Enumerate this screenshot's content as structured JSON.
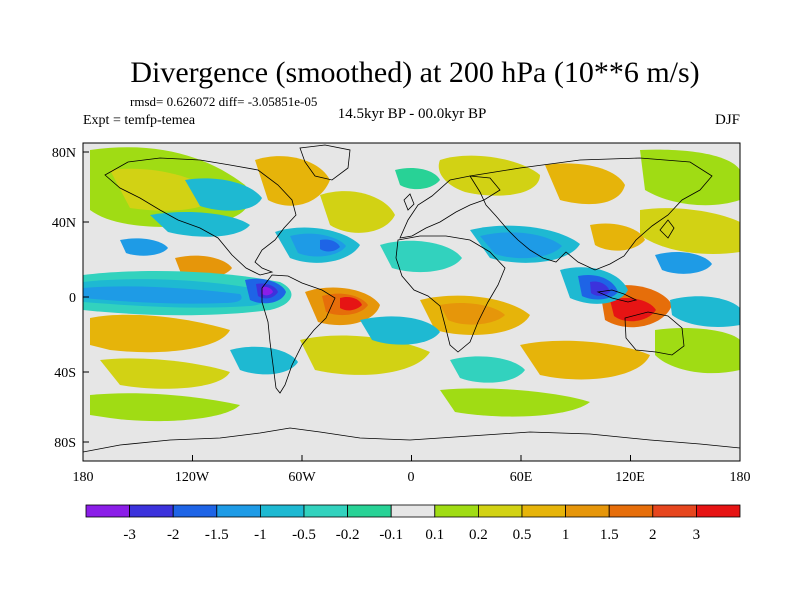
{
  "title": "Divergence (smoothed) at 200 hPa (10**6 m/s)",
  "stats": "rmsd= 0.626072 diff= -3.05851e-05",
  "experiment": "Expt = temfp-temea",
  "period": "14.5kyr BP - 00.0kyr BP",
  "season": "DJF",
  "lat_ticks": [
    "80N",
    "40N",
    "0",
    "40S",
    "80S"
  ],
  "lon_ticks": [
    "180",
    "120W",
    "60W",
    "0",
    "60E",
    "120E",
    "180"
  ],
  "colorbar": {
    "labels": [
      "-3",
      "-2",
      "-1.5",
      "-1",
      "-0.5",
      "-0.2",
      "-0.1",
      "0.1",
      "0.2",
      "0.5",
      "1",
      "1.5",
      "2",
      "3"
    ],
    "colors": [
      "#8b1ee8",
      "#3c32dc",
      "#1e64e6",
      "#1e9be6",
      "#1eb9d2",
      "#32d2be",
      "#28d296",
      "#e6e6e6",
      "#a0dc14",
      "#d2d214",
      "#e6b40a",
      "#e6960a",
      "#e66e0a",
      "#e6461e",
      "#e61414"
    ]
  },
  "colors": {
    "ocean_neutral": "#e6e6e6",
    "coastline": "#000000",
    "frame": "#000000"
  }
}
